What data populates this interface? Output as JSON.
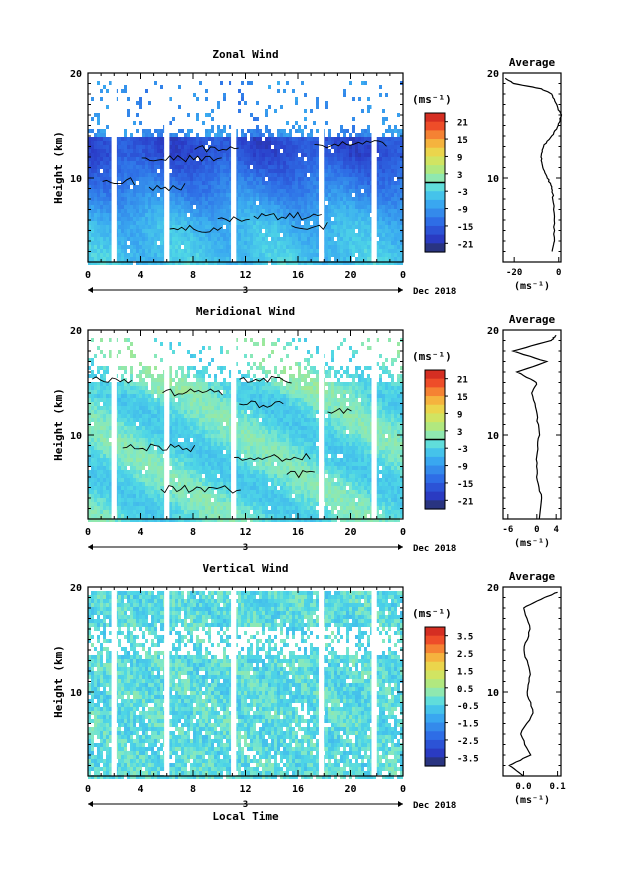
{
  "chart_data": [
    {
      "type": "heatmap",
      "title": "Zonal Wind",
      "ylabel": "Height (km)",
      "ylim": [
        2,
        20
      ],
      "yticks": [
        "20",
        "10"
      ],
      "xlim": [
        0,
        24
      ],
      "xticks": [
        "0",
        "4",
        "8",
        "12",
        "16",
        "20",
        "0"
      ],
      "date_day": "3",
      "date_label": "Dec 2018",
      "colorbar": {
        "unit": "(ms⁻¹)",
        "range": [
          -24,
          24
        ],
        "ticks": [
          "21",
          "15",
          "9",
          "3",
          "-3",
          "-9",
          "-15",
          "-21"
        ]
      },
      "gaps": [
        [
          1.8,
          2.2
        ],
        [
          5.8,
          6.2
        ],
        [
          10.9,
          11.3
        ],
        [
          17.6,
          18.0
        ],
        [
          21.6,
          22.0
        ]
      ],
      "profile": {
        "title": "Average",
        "xlabel": "(ms⁻¹)",
        "xlim": [
          -25,
          1
        ],
        "xticks": [
          "-20",
          "0"
        ],
        "yticks": [
          "20",
          "10"
        ],
        "points": [
          [
            -3,
            3
          ],
          [
            -2,
            4
          ],
          [
            -2,
            6
          ],
          [
            -2.5,
            8
          ],
          [
            -3,
            9
          ],
          [
            -5,
            10
          ],
          [
            -7,
            11
          ],
          [
            -8,
            12
          ],
          [
            -7,
            13
          ],
          [
            -3,
            14
          ],
          [
            0,
            15
          ],
          [
            1,
            16
          ],
          [
            -1,
            17
          ],
          [
            -3,
            18
          ],
          [
            -8,
            18.5
          ],
          [
            -20,
            19
          ],
          [
            -24,
            19.5
          ]
        ]
      }
    },
    {
      "type": "heatmap",
      "title": "Meridional Wind",
      "ylabel": "Height (km)",
      "ylim": [
        2,
        20
      ],
      "yticks": [
        "20",
        "10"
      ],
      "xlim": [
        0,
        24
      ],
      "xticks": [
        "0",
        "4",
        "8",
        "12",
        "16",
        "20",
        "0"
      ],
      "date_day": "3",
      "date_label": "Dec 2018",
      "colorbar": {
        "unit": "(ms⁻¹)",
        "range": [
          -24,
          24
        ],
        "ticks": [
          "21",
          "15",
          "9",
          "3",
          "-3",
          "-9",
          "-15",
          "-21"
        ]
      },
      "gaps": [
        [
          1.8,
          2.2
        ],
        [
          5.8,
          6.2
        ],
        [
          10.9,
          11.3
        ],
        [
          17.6,
          18.0
        ],
        [
          21.6,
          22.0
        ]
      ],
      "profile": {
        "title": "Average",
        "xlabel": "(ms⁻¹)",
        "xlim": [
          -7,
          5
        ],
        "xticks": [
          "-6",
          "0",
          "4"
        ],
        "yticks": [
          "20",
          "10"
        ],
        "points": [
          [
            0.5,
            2
          ],
          [
            1,
            4
          ],
          [
            0,
            6
          ],
          [
            0,
            8
          ],
          [
            0.5,
            10
          ],
          [
            0,
            12
          ],
          [
            -1,
            14
          ],
          [
            0,
            15
          ],
          [
            -4,
            16
          ],
          [
            2,
            17
          ],
          [
            -5,
            18
          ],
          [
            3,
            19
          ],
          [
            4,
            19.5
          ]
        ]
      }
    },
    {
      "type": "heatmap",
      "title": "Vertical Wind",
      "ylabel": "Height (km)",
      "xlabel": "Local Time",
      "ylim": [
        2,
        20
      ],
      "yticks": [
        "20",
        "10"
      ],
      "xlim": [
        0,
        24
      ],
      "xticks": [
        "0",
        "4",
        "8",
        "12",
        "16",
        "20",
        "0"
      ],
      "date_day": "3",
      "date_label": "Dec 2018",
      "colorbar": {
        "unit": "(ms⁻¹)",
        "range": [
          -4,
          4
        ],
        "ticks": [
          "3.5",
          "2.5",
          "1.5",
          "0.5",
          "-0.5",
          "-1.5",
          "-2.5",
          "-3.5"
        ]
      },
      "gaps": [
        [
          1.8,
          2.2
        ],
        [
          5.8,
          6.2
        ],
        [
          10.9,
          11.3
        ],
        [
          17.6,
          18.0
        ],
        [
          21.6,
          22.0
        ]
      ],
      "profile": {
        "title": "Average",
        "xlabel": "(ms⁻¹)",
        "xlim": [
          -0.06,
          0.11
        ],
        "xticks": [
          "0.0",
          "0.1"
        ],
        "yticks": [
          "20",
          "10"
        ],
        "points": [
          [
            0.0,
            2
          ],
          [
            -0.04,
            3
          ],
          [
            0.02,
            4
          ],
          [
            -0.01,
            6
          ],
          [
            0.03,
            8
          ],
          [
            0.01,
            10
          ],
          [
            0.02,
            12
          ],
          [
            0.0,
            14
          ],
          [
            0.02,
            16
          ],
          [
            0.0,
            18
          ],
          [
            0.06,
            19
          ],
          [
            0.1,
            19.5
          ]
        ]
      }
    }
  ]
}
